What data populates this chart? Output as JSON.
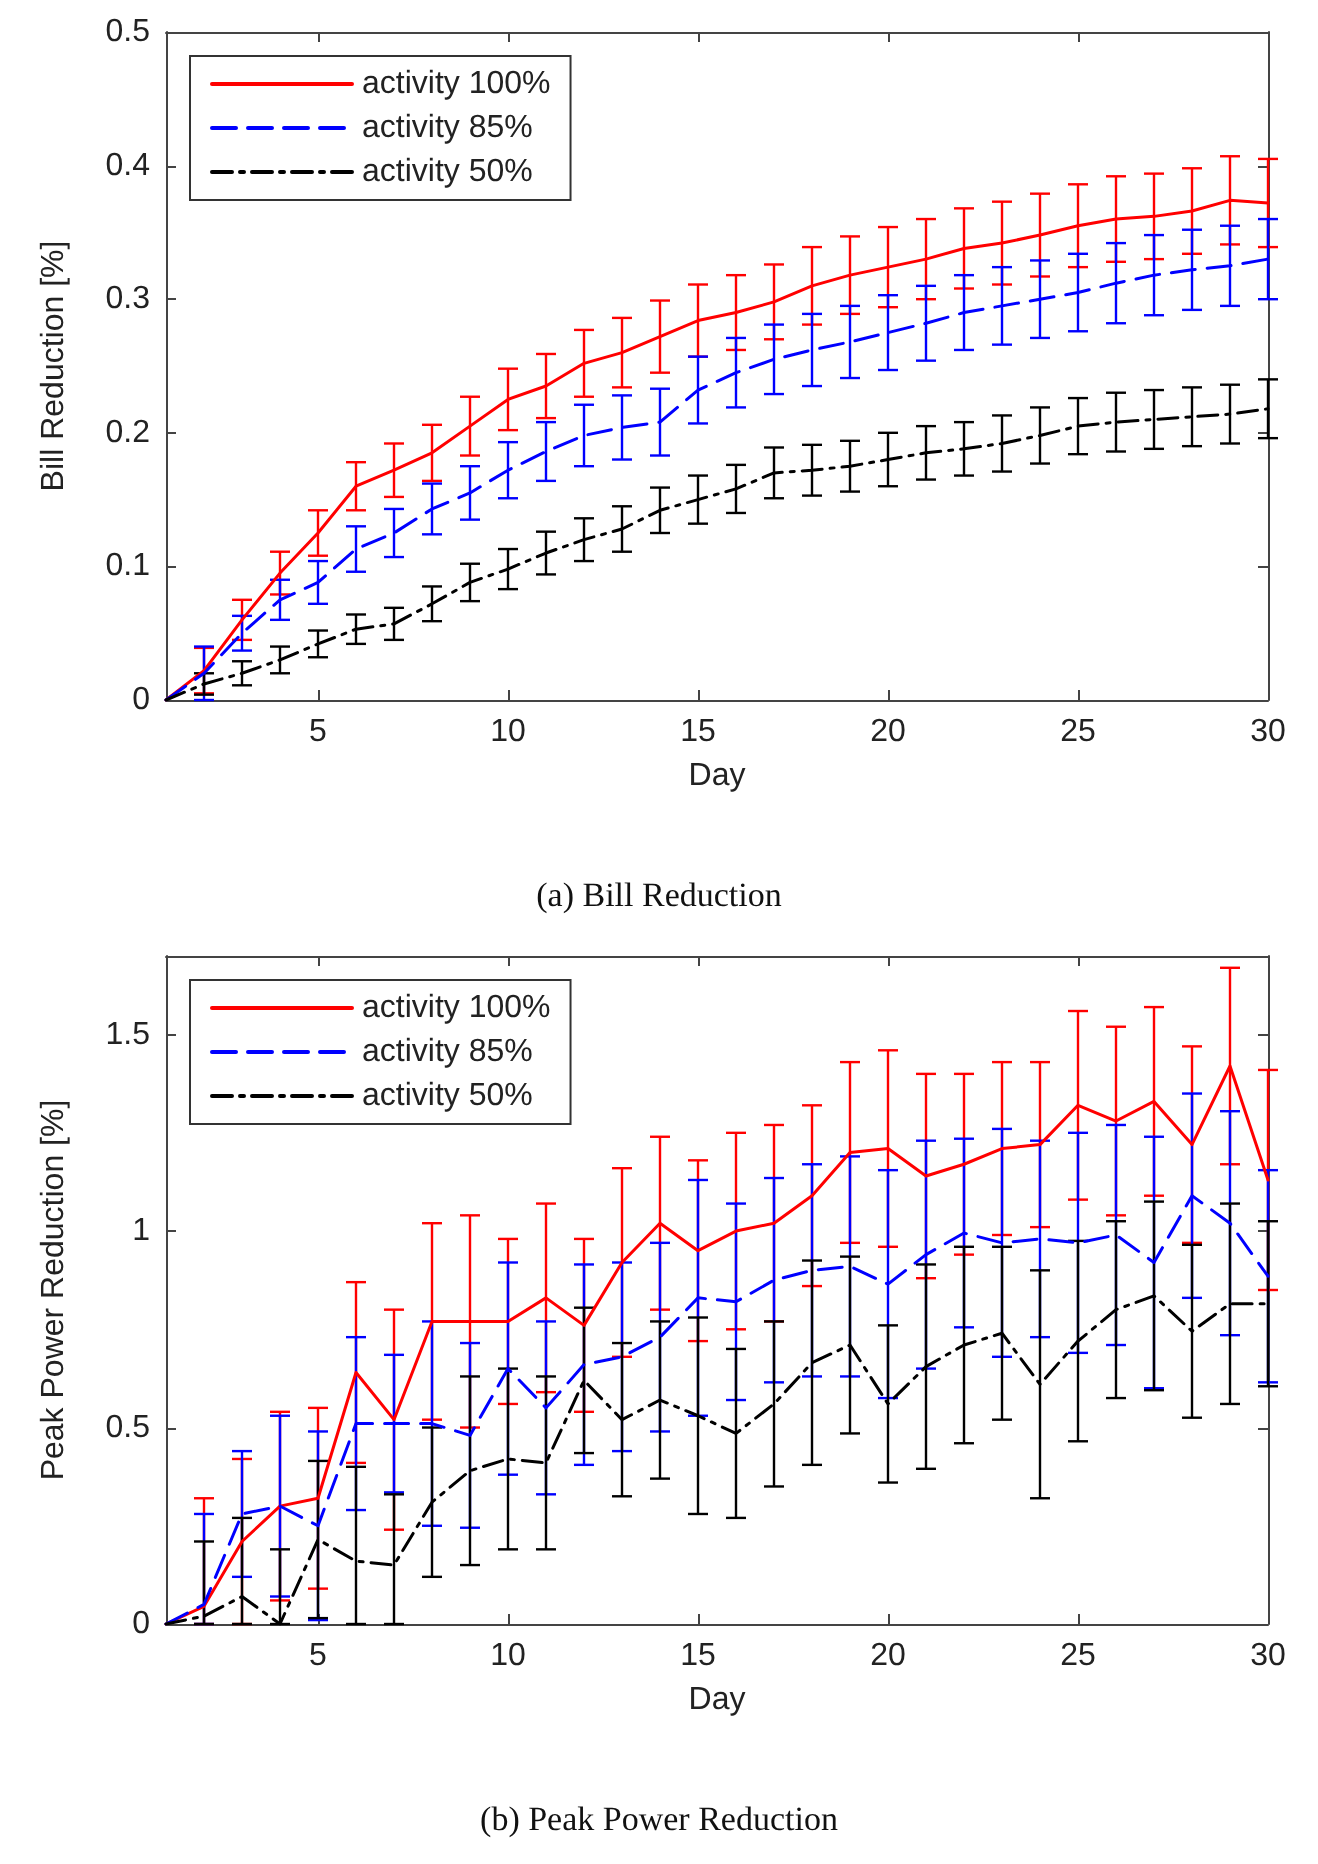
{
  "chart_data": [
    {
      "type": "line",
      "xlabel": "Day",
      "ylabel": "Bill Reduction [%]",
      "annotations": [
        "(a) Bill Reduction"
      ],
      "x": [
        1,
        2,
        3,
        4,
        5,
        6,
        7,
        8,
        9,
        10,
        11,
        12,
        13,
        14,
        15,
        16,
        17,
        18,
        19,
        20,
        21,
        22,
        23,
        24,
        25,
        26,
        27,
        28,
        29,
        30
      ],
      "xlim": [
        1,
        30
      ],
      "xticks": [
        5,
        10,
        15,
        20,
        25,
        30
      ],
      "ylim": [
        0,
        0.5
      ],
      "yticks": [
        0,
        0.1,
        0.2,
        0.3,
        0.4,
        0.5
      ],
      "grid": false,
      "legend": "top left",
      "marker": "none",
      "series": [
        {
          "name": "activity 100%",
          "color": "#ff0000",
          "line_style": "solid",
          "values": [
            0,
            0.022,
            0.06,
            0.095,
            0.125,
            0.16,
            0.172,
            0.185,
            0.205,
            0.225,
            0.235,
            0.252,
            0.26,
            0.272,
            0.284,
            0.29,
            0.298,
            0.31,
            0.318,
            0.324,
            0.33,
            0.338,
            0.342,
            0.348,
            0.355,
            0.36,
            0.362,
            0.366,
            0.374,
            0.372
          ],
          "errors": [
            null,
            0.017,
            0.015,
            0.016,
            0.017,
            0.018,
            0.02,
            0.021,
            0.022,
            0.023,
            0.024,
            0.025,
            0.026,
            0.027,
            0.027,
            0.028,
            0.028,
            0.029,
            0.029,
            0.03,
            0.03,
            0.03,
            0.031,
            0.031,
            0.031,
            0.032,
            0.032,
            0.032,
            0.033,
            0.033
          ]
        },
        {
          "name": "activity 85%",
          "color": "#0000ff",
          "line_style": "dashed",
          "values": [
            0,
            0.02,
            0.05,
            0.075,
            0.088,
            0.113,
            0.125,
            0.143,
            0.155,
            0.172,
            0.186,
            0.198,
            0.204,
            0.208,
            0.232,
            0.245,
            0.255,
            0.262,
            0.268,
            0.275,
            0.282,
            0.29,
            0.295,
            0.3,
            0.305,
            0.312,
            0.318,
            0.322,
            0.325,
            0.33
          ],
          "errors": [
            null,
            0.02,
            0.013,
            0.015,
            0.016,
            0.017,
            0.018,
            0.019,
            0.02,
            0.021,
            0.022,
            0.023,
            0.024,
            0.025,
            0.025,
            0.026,
            0.026,
            0.027,
            0.027,
            0.028,
            0.028,
            0.028,
            0.029,
            0.029,
            0.029,
            0.03,
            0.03,
            0.03,
            0.03,
            0.03
          ]
        },
        {
          "name": "activity 50%",
          "color": "#000000",
          "line_style": "dashdot",
          "values": [
            0,
            0.012,
            0.02,
            0.03,
            0.042,
            0.053,
            0.057,
            0.072,
            0.088,
            0.098,
            0.11,
            0.12,
            0.128,
            0.142,
            0.15,
            0.158,
            0.17,
            0.172,
            0.175,
            0.18,
            0.185,
            0.188,
            0.192,
            0.198,
            0.205,
            0.208,
            0.21,
            0.212,
            0.214,
            0.218
          ],
          "errors": [
            null,
            0.008,
            0.009,
            0.01,
            0.01,
            0.011,
            0.012,
            0.013,
            0.014,
            0.015,
            0.016,
            0.016,
            0.017,
            0.017,
            0.018,
            0.018,
            0.019,
            0.019,
            0.019,
            0.02,
            0.02,
            0.02,
            0.021,
            0.021,
            0.021,
            0.022,
            0.022,
            0.022,
            0.022,
            0.022
          ]
        }
      ]
    },
    {
      "type": "line",
      "xlabel": "Day",
      "ylabel": "Peak Power Reduction [%]",
      "annotations": [
        "(b) Peak Power Reduction"
      ],
      "x": [
        1,
        2,
        3,
        4,
        5,
        6,
        7,
        8,
        9,
        10,
        11,
        12,
        13,
        14,
        15,
        16,
        17,
        18,
        19,
        20,
        21,
        22,
        23,
        24,
        25,
        26,
        27,
        28,
        29,
        30
      ],
      "xlim": [
        1,
        30
      ],
      "xticks": [
        5,
        10,
        15,
        20,
        25,
        30
      ],
      "ylim": [
        0,
        1.7
      ],
      "yticks": [
        0,
        0.5,
        1,
        1.5
      ],
      "grid": false,
      "legend": "top left",
      "marker": "none",
      "series": [
        {
          "name": "activity 100%",
          "color": "#ff0000",
          "line_style": "solid",
          "values": [
            0,
            0.045,
            0.21,
            0.3,
            0.32,
            0.64,
            0.52,
            0.77,
            0.77,
            0.77,
            0.83,
            0.76,
            0.92,
            1.02,
            0.95,
            1.0,
            1.02,
            1.09,
            1.2,
            1.21,
            1.14,
            1.17,
            1.21,
            1.22,
            1.32,
            1.28,
            1.33,
            1.22,
            1.42,
            1.13
          ],
          "errors": [
            null,
            [
              0,
              0.32
            ],
            0.21,
            0.24,
            0.23,
            0.23,
            0.28,
            0.25,
            0.27,
            0.21,
            0.24,
            0.22,
            0.24,
            0.22,
            0.23,
            0.25,
            0.25,
            0.23,
            0.23,
            0.25,
            0.26,
            0.23,
            0.22,
            0.21,
            0.24,
            0.24,
            0.24,
            0.25,
            0.25,
            0.28
          ]
        },
        {
          "name": "activity 85%",
          "color": "#0000ff",
          "line_style": "dashed",
          "values": [
            0,
            0.05,
            0.28,
            0.3,
            0.25,
            0.51,
            0.51,
            0.51,
            0.48,
            0.65,
            0.55,
            0.66,
            0.68,
            0.73,
            0.83,
            0.82,
            0.875,
            0.9,
            0.91,
            0.865,
            0.94,
            0.995,
            0.97,
            0.98,
            0.97,
            0.99,
            0.92,
            1.09,
            1.02,
            0.885
          ],
          "errors": [
            null,
            [
              0,
              0.28
            ],
            0.16,
            0.23,
            0.24,
            0.22,
            0.175,
            0.26,
            0.235,
            0.27,
            0.22,
            0.255,
            0.24,
            0.24,
            0.3,
            0.25,
            0.26,
            0.27,
            0.28,
            0.29,
            0.29,
            0.24,
            0.29,
            0.25,
            0.28,
            0.28,
            0.32,
            0.26,
            0.285,
            0.27
          ]
        },
        {
          "name": "activity 50%",
          "color": "#000000",
          "line_style": "dashdot",
          "values": [
            0,
            0.02,
            0.07,
            0,
            0.215,
            0.16,
            0.15,
            0.31,
            0.39,
            0.42,
            0.41,
            0.62,
            0.52,
            0.57,
            0.53,
            0.485,
            0.56,
            0.665,
            0.71,
            0.56,
            0.655,
            0.71,
            0.74,
            0.61,
            0.72,
            0.8,
            0.835,
            0.745,
            0.815,
            0.815
          ],
          "errors": [
            null,
            [
              0,
              0.21
            ],
            [
              0,
              0.27
            ],
            [
              0,
              0.19
            ],
            0.2,
            [
              0,
              0.4
            ],
            [
              0,
              0.33
            ],
            0.19,
            0.24,
            0.23,
            0.22,
            0.185,
            0.195,
            0.2,
            0.25,
            0.215,
            0.21,
            0.26,
            0.225,
            0.2,
            0.26,
            0.25,
            0.22,
            0.29,
            0.255,
            0.225,
            0.24,
            0.22,
            0.255,
            0.21
          ]
        }
      ]
    }
  ]
}
